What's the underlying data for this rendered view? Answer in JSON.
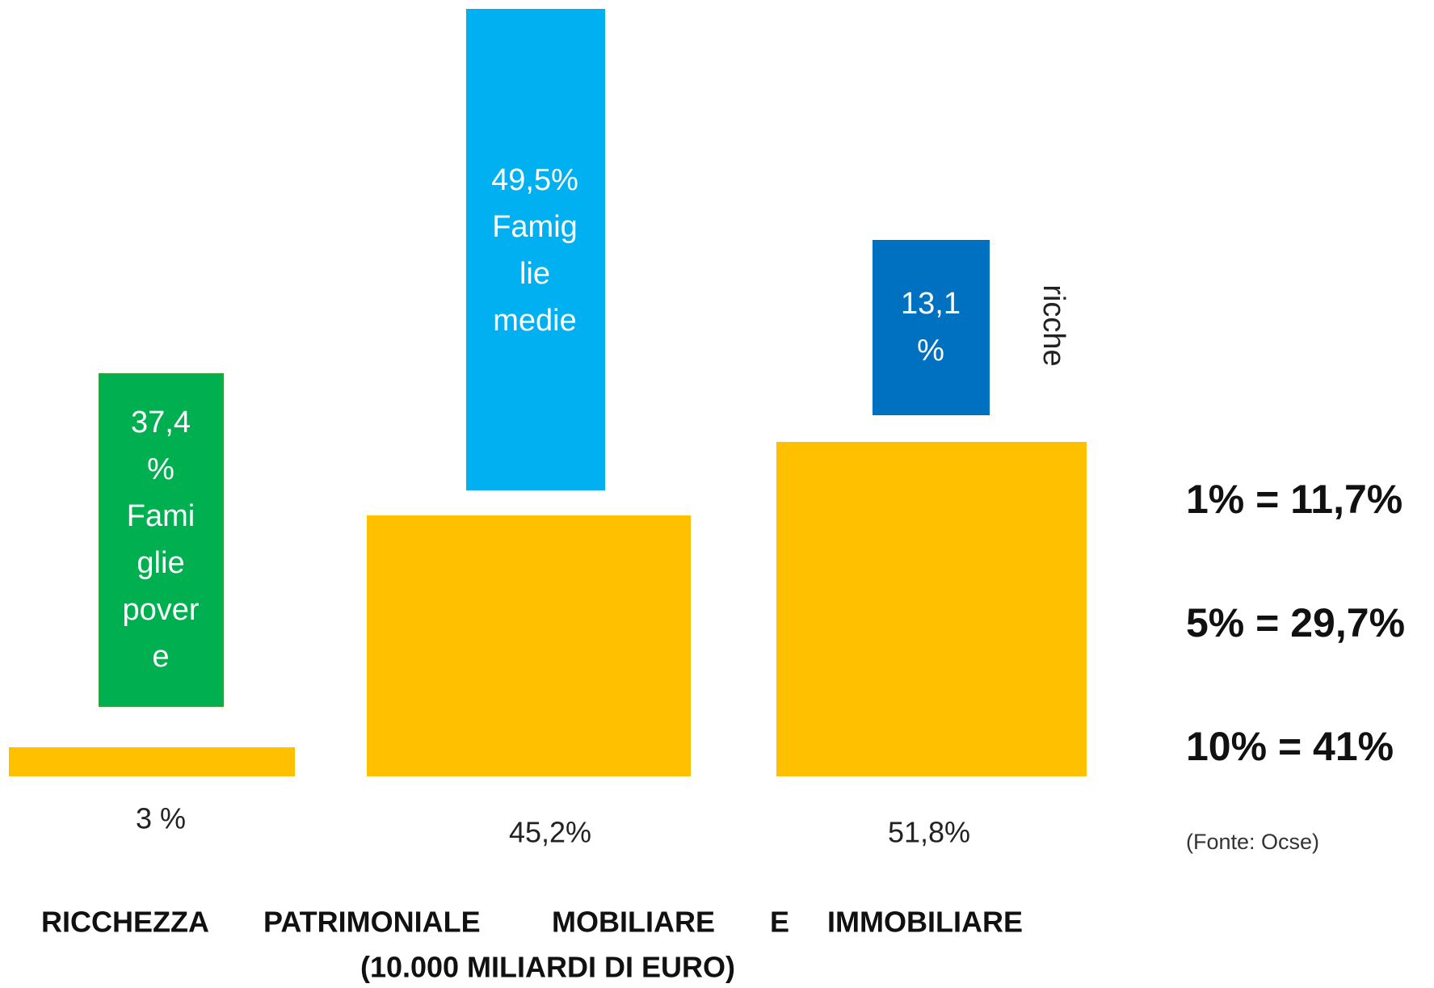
{
  "groups": [
    {
      "base_label": "3 %",
      "box_lines": [
        "37,4",
        "%",
        "Fami",
        "glie",
        "pover",
        "e"
      ]
    },
    {
      "base_label": "45,2%",
      "box_lines": [
        "49,5%",
        "Famig",
        "lie",
        "medie"
      ]
    },
    {
      "base_label": "51,8%",
      "box_lines": [
        "13,1",
        "%"
      ],
      "side_label": "ricche"
    }
  ],
  "stats": [
    "1% = 11,7%",
    "5% = 29,7%",
    "10% = 41%"
  ],
  "source": "(Fonte: Ocse)",
  "caption": {
    "words": [
      "RICCHEZZA",
      "PATRIMONIALE",
      "MOBILIARE",
      "E",
      "IMMOBILIARE"
    ],
    "line2": "(10.000 MILIARDI DI EURO)"
  }
}
